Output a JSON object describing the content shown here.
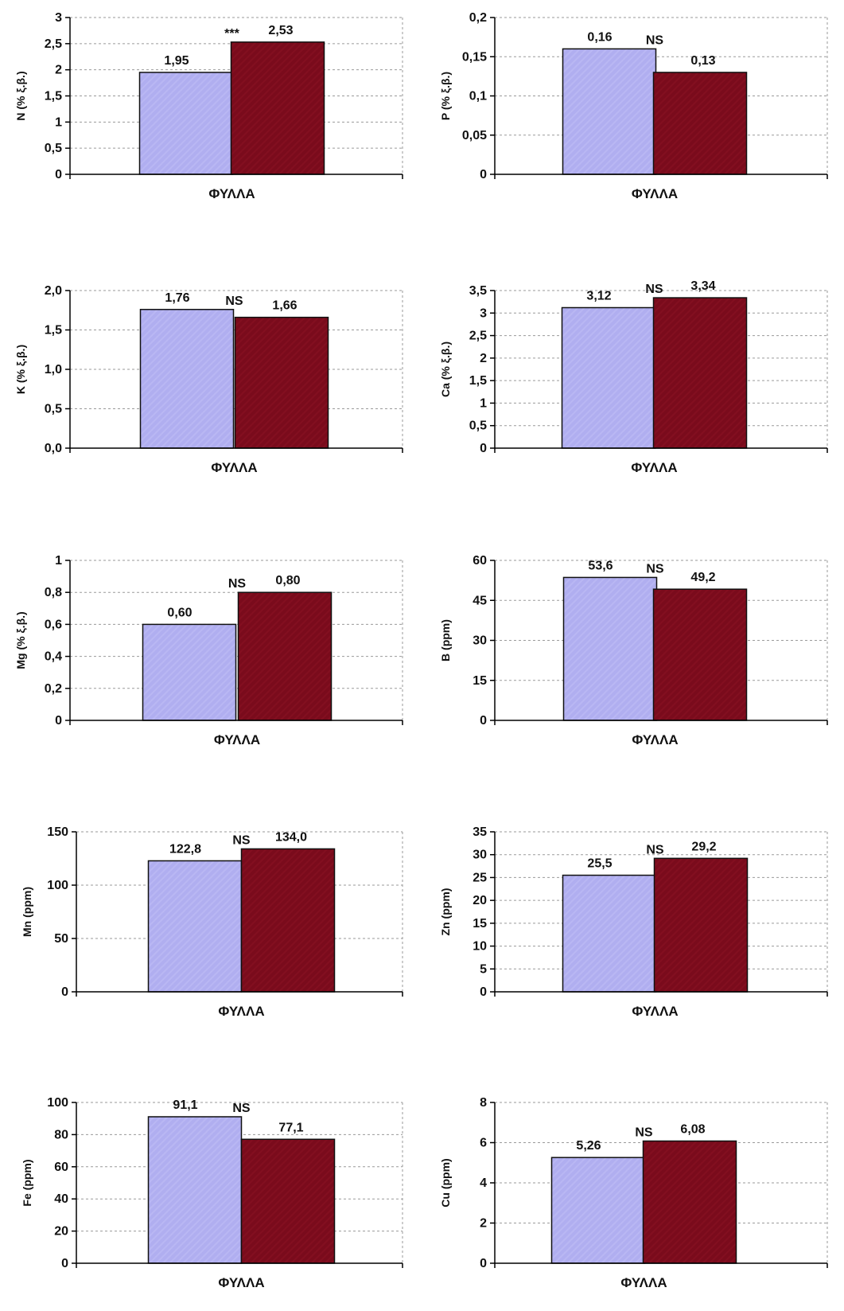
{
  "colors": {
    "series1": "#b0aef0",
    "series2": "#7a0b1c",
    "axis": "#000000",
    "grid": "#9a9a9a"
  },
  "chart_data": [
    {
      "type": "bar",
      "categories": [
        "ΦΥΛΛΑ"
      ],
      "xlabel": "ΦΥΛΛΑ",
      "ylabel": "N (% ξ.β.)",
      "series": [
        {
          "values": [
            1.95
          ]
        },
        {
          "values": [
            2.53
          ]
        }
      ],
      "data_labels": [
        "1,95",
        "2,53"
      ],
      "significance": "***",
      "ylim": [
        0,
        3
      ],
      "yticks": [
        "0",
        "0,5",
        "1",
        "1,5",
        "2",
        "2,5",
        "3"
      ],
      "grid": true
    },
    {
      "type": "bar",
      "categories": [
        "ΦΥΛΛΑ"
      ],
      "xlabel": "ΦΥΛΛΑ",
      "ylabel": "P (% ξ.β.)",
      "series": [
        {
          "values": [
            0.16
          ]
        },
        {
          "values": [
            0.13
          ]
        }
      ],
      "data_labels": [
        "0,16",
        "0,13"
      ],
      "significance": "NS",
      "ylim": [
        0,
        0.2
      ],
      "yticks": [
        "0",
        "0,05",
        "0,1",
        "0,15",
        "0,2"
      ],
      "grid": true
    },
    {
      "type": "bar",
      "categories": [
        "ΦΥΛΛΑ"
      ],
      "xlabel": "ΦΥΛΛΑ",
      "ylabel": "K (% ξ.β.)",
      "series": [
        {
          "values": [
            1.76
          ]
        },
        {
          "values": [
            1.66
          ]
        }
      ],
      "data_labels": [
        "1,76",
        "1,66"
      ],
      "significance": "NS",
      "ylim": [
        0,
        2
      ],
      "yticks": [
        "0,0",
        "0,5",
        "1,0",
        "1,5",
        "2,0"
      ],
      "grid": true
    },
    {
      "type": "bar",
      "categories": [
        "ΦΥΛΛΑ"
      ],
      "xlabel": "ΦΥΛΛΑ",
      "ylabel": "Ca (% ξ.β.)",
      "series": [
        {
          "values": [
            3.12
          ]
        },
        {
          "values": [
            3.34
          ]
        }
      ],
      "data_labels": [
        "3,12",
        "3,34"
      ],
      "significance": "NS",
      "ylim": [
        0,
        3.5
      ],
      "yticks": [
        "0",
        "0,5",
        "1",
        "1,5",
        "2",
        "2,5",
        "3",
        "3,5"
      ],
      "grid": true
    },
    {
      "type": "bar",
      "categories": [
        "ΦΥΛΛΑ"
      ],
      "xlabel": "ΦΥΛΛΑ",
      "ylabel": "Mg (% ξ.β.)",
      "series": [
        {
          "values": [
            0.6
          ]
        },
        {
          "values": [
            0.8
          ]
        }
      ],
      "data_labels": [
        "0,60",
        "0,80"
      ],
      "significance": "NS",
      "ylim": [
        0,
        1
      ],
      "yticks": [
        "0",
        "0,2",
        "0,4",
        "0,6",
        "0,8",
        "1"
      ],
      "grid": true
    },
    {
      "type": "bar",
      "categories": [
        "ΦΥΛΛΑ"
      ],
      "xlabel": "ΦΥΛΛΑ",
      "ylabel": "B (ppm)",
      "series": [
        {
          "values": [
            53.6
          ]
        },
        {
          "values": [
            49.2
          ]
        }
      ],
      "data_labels": [
        "53,6",
        "49,2"
      ],
      "significance": "NS",
      "ylim": [
        0,
        60
      ],
      "yticks": [
        "0",
        "15",
        "30",
        "45",
        "60"
      ],
      "grid": true
    },
    {
      "type": "bar",
      "categories": [
        "ΦΥΛΛΑ"
      ],
      "xlabel": "ΦΥΛΛΑ",
      "ylabel": "Mn (ppm)",
      "series": [
        {
          "values": [
            122.8
          ]
        },
        {
          "values": [
            134.0
          ]
        }
      ],
      "data_labels": [
        "122,8",
        "134,0"
      ],
      "significance": "NS",
      "ylim": [
        0,
        150
      ],
      "yticks": [
        "0",
        "50",
        "100",
        "150"
      ],
      "grid": true
    },
    {
      "type": "bar",
      "categories": [
        "ΦΥΛΛΑ"
      ],
      "xlabel": "ΦΥΛΛΑ",
      "ylabel": "Zn (ppm)",
      "series": [
        {
          "values": [
            25.5
          ]
        },
        {
          "values": [
            29.2
          ]
        }
      ],
      "data_labels": [
        "25,5",
        "29,2"
      ],
      "significance": "NS",
      "ylim": [
        0,
        35
      ],
      "yticks": [
        "0",
        "5",
        "10",
        "15",
        "20",
        "25",
        "30",
        "35"
      ],
      "grid": true
    },
    {
      "type": "bar",
      "categories": [
        "ΦΥΛΛΑ"
      ],
      "xlabel": "ΦΥΛΛΑ",
      "ylabel": "Fe (ppm)",
      "series": [
        {
          "values": [
            91.1
          ]
        },
        {
          "values": [
            77.1
          ]
        }
      ],
      "data_labels": [
        "91,1",
        "77,1"
      ],
      "significance": "NS",
      "ylim": [
        0,
        100
      ],
      "yticks": [
        "0",
        "20",
        "40",
        "60",
        "80",
        "100"
      ],
      "grid": true
    },
    {
      "type": "bar",
      "categories": [
        "ΦΥΛΛΑ"
      ],
      "xlabel": "ΦΥΛΛΑ",
      "ylabel": "Cu (ppm)",
      "series": [
        {
          "values": [
            5.26
          ]
        },
        {
          "values": [
            6.08
          ]
        }
      ],
      "data_labels": [
        "5,26",
        "6,08"
      ],
      "significance": "NS",
      "ylim": [
        0,
        8
      ],
      "yticks": [
        "0",
        "2",
        "4",
        "6",
        "8"
      ],
      "grid": true
    }
  ]
}
